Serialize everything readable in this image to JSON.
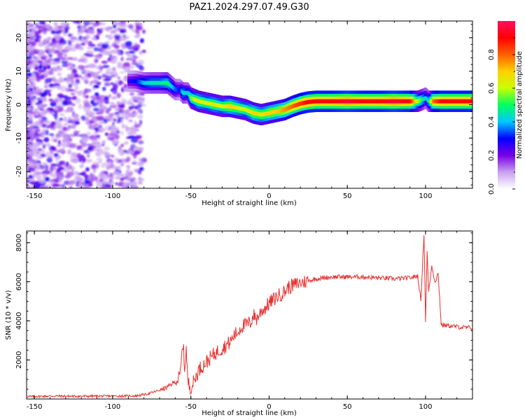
{
  "title": "PAZ1.2024.297.07.49.G30",
  "chart_data": [
    {
      "type": "heatmap",
      "title": "",
      "xlabel": "Height of straight line (km)",
      "ylabel": "Frequency (Hz)",
      "xlim": [
        -155,
        130
      ],
      "ylim": [
        -25,
        25
      ],
      "xticks": [
        -150,
        -100,
        -50,
        0,
        50,
        100
      ],
      "yticks": [
        -20,
        -10,
        0,
        10,
        20
      ],
      "ridge": {
        "x": [
          -90,
          -85,
          -80,
          -75,
          -70,
          -65,
          -60,
          -57,
          -55,
          -52,
          -50,
          -45,
          -40,
          -35,
          -30,
          -25,
          -20,
          -15,
          -10,
          -5,
          0,
          5,
          10,
          15,
          20,
          25,
          30,
          40,
          50,
          60,
          70,
          80,
          90,
          95,
          98,
          100,
          102,
          105,
          110,
          120,
          130
        ],
        "y": [
          7,
          7,
          6.5,
          6.5,
          6.5,
          6.5,
          4.5,
          4.5,
          3.5,
          3.5,
          2,
          1,
          0.5,
          0,
          -0.5,
          -0.5,
          -1,
          -1.5,
          -2.5,
          -3,
          -2.5,
          -2,
          -1.5,
          -0.5,
          0.3,
          0.8,
          1,
          1,
          1,
          1,
          1,
          1,
          1,
          1,
          1.5,
          2,
          1,
          1,
          1,
          1,
          1
        ],
        "amplitude": [
          0.25,
          0.3,
          0.4,
          0.45,
          0.45,
          0.5,
          0.35,
          0.3,
          0.45,
          0.4,
          0.55,
          0.65,
          0.6,
          0.65,
          0.6,
          0.7,
          0.65,
          0.6,
          0.7,
          0.65,
          0.7,
          0.7,
          0.75,
          0.8,
          0.85,
          0.9,
          0.9,
          0.9,
          0.95,
          0.9,
          0.9,
          0.95,
          0.9,
          0.6,
          0.5,
          0.4,
          0.45,
          0.8,
          0.9,
          0.9,
          0.9
        ]
      },
      "colorbar": {
        "label": "Normalized spectral amplitude",
        "range": [
          0,
          1
        ],
        "ticks": [
          0.0,
          0.2,
          0.4,
          0.6,
          0.8
        ],
        "tick_labels": [
          "0.0",
          "0.2",
          "0.4",
          "0.6",
          "0.8"
        ],
        "colors": [
          "#ffffff",
          "#c8a0f0",
          "#7a00e8",
          "#0000ff",
          "#00c8ff",
          "#00ff60",
          "#c8ff00",
          "#ffd000",
          "#ff6000",
          "#ff0000",
          "#ff1060"
        ]
      }
    },
    {
      "type": "line",
      "title": "",
      "xlabel": "Height of straight line (km)",
      "ylabel": "SNR (10 * v/v)",
      "xlim": [
        -155,
        130
      ],
      "ylim": [
        0,
        8600
      ],
      "xticks": [
        -150,
        -100,
        -50,
        0,
        50,
        100
      ],
      "yticks": [
        2000,
        4000,
        6000,
        8000
      ],
      "series": [
        {
          "color": "#e83030",
          "x": [
            -155,
            -140,
            -120,
            -100,
            -85,
            -78,
            -70,
            -65,
            -60,
            -57,
            -55,
            -54,
            -53,
            -52,
            -51,
            -50,
            -48,
            -45,
            -40,
            -35,
            -30,
            -25,
            -22,
            -20,
            -18,
            -15,
            -12,
            -10,
            -8,
            -5,
            -2,
            0,
            3,
            6,
            10,
            12,
            15,
            18,
            20,
            25,
            30,
            35,
            40,
            50,
            60,
            70,
            80,
            90,
            95,
            97,
            99,
            100,
            101,
            102,
            104,
            106,
            108,
            109,
            110,
            115,
            120,
            125,
            130
          ],
          "y": [
            120,
            150,
            140,
            150,
            160,
            250,
            450,
            600,
            900,
            1100,
            2900,
            1500,
            2600,
            900,
            700,
            600,
            900,
            1500,
            1900,
            2300,
            2600,
            2900,
            3300,
            3400,
            3700,
            3800,
            3900,
            4300,
            4100,
            4500,
            4700,
            4900,
            5100,
            5300,
            5500,
            5700,
            5800,
            5900,
            5950,
            6050,
            6150,
            6200,
            6250,
            6250,
            6250,
            6200,
            6150,
            6200,
            6300,
            5000,
            8500,
            4000,
            7500,
            5500,
            6800,
            6000,
            6400,
            5200,
            3800,
            3750,
            3700,
            3650,
            3650
          ]
        }
      ]
    }
  ]
}
